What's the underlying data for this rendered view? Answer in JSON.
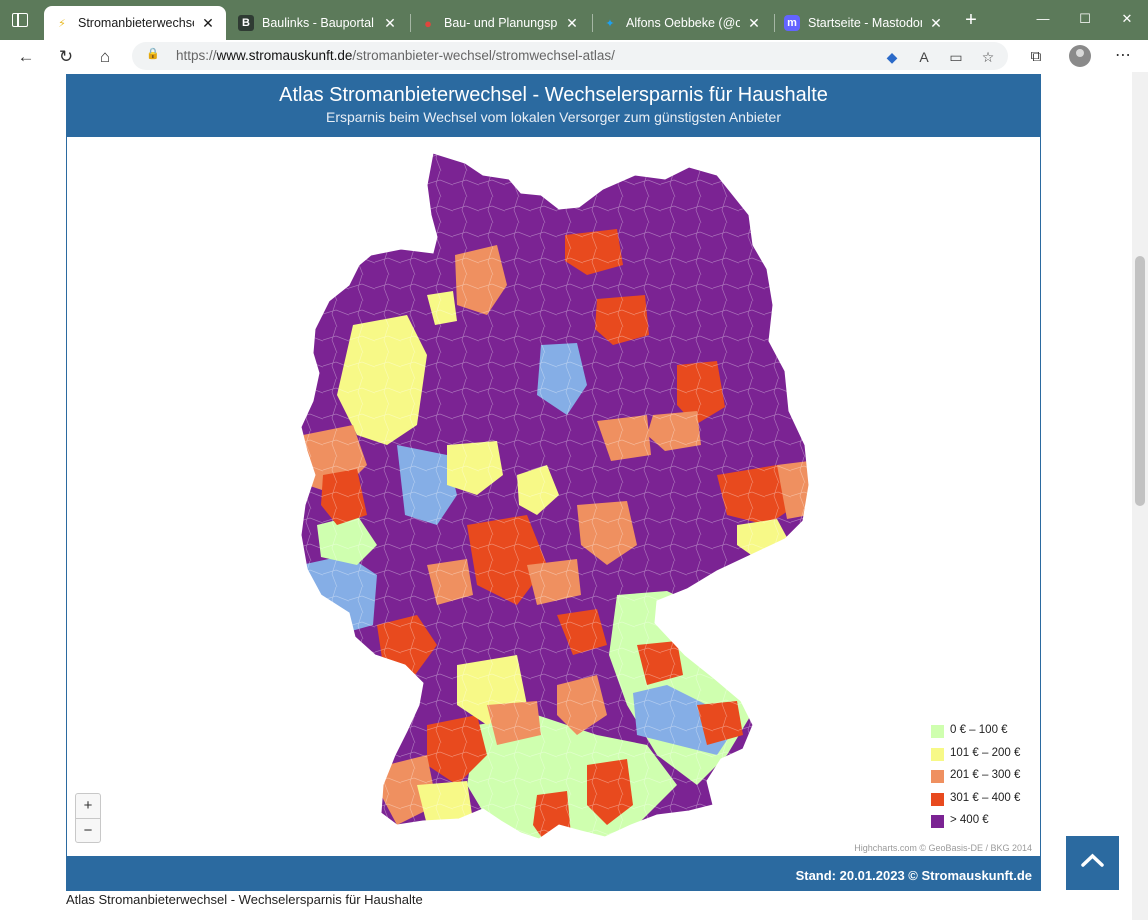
{
  "browser": {
    "tabs": [
      {
        "label": "Stromanbieterwechsel-Atl",
        "active": true,
        "icon": "stromauskunft-favicon",
        "favicon_glyph": "⚡",
        "favicon_color": "#e8b923"
      },
      {
        "label": "Baulinks - Bauportal / Bau",
        "active": false,
        "icon": "baulinks-favicon",
        "favicon_glyph": "B",
        "favicon_color": "#2f3b33"
      },
      {
        "label": "Bau- und Planungsprojekt",
        "active": false,
        "icon": "maps-pin-favicon",
        "favicon_glyph": "●",
        "favicon_color": "#e0463d"
      },
      {
        "label": "Alfons Oebbeke (@oebbe",
        "active": false,
        "icon": "twitter-favicon",
        "favicon_glyph": "✦",
        "favicon_color": "#1da1f2"
      },
      {
        "label": "Startseite - Mastodon",
        "active": false,
        "icon": "mastodon-favicon",
        "favicon_glyph": "m",
        "favicon_color": "#6364ff"
      }
    ],
    "close_glyph": "✕",
    "newtab_glyph": "+",
    "window": {
      "minimize": "—",
      "maximize": "☐",
      "close": "✕"
    },
    "nav": {
      "back": "←",
      "reload": "↻",
      "home": "⌂"
    },
    "address": {
      "lock_glyph": "🔒",
      "url_prefix": "https://",
      "url_host": "www.stromauskunft.de",
      "url_path": "/stromanbieter-wechsel/stromwechsel-atlas/"
    },
    "address_icons": {
      "tag": "◆",
      "read_aloud": "A",
      "reader": "▭",
      "favorite": "☆"
    },
    "extensions_glyph": "⧉",
    "menu_glyph": "⋯"
  },
  "map": {
    "title": "Atlas Stromanbieterwechsel - Wechselersparnis für Haushalte",
    "subtitle": "Ersparnis beim Wechsel vom lokalen Versorger zum günstigsten Anbieter",
    "legend": [
      {
        "label": "0 € – 100 €",
        "color": "#cfffaf"
      },
      {
        "label": "101 € – 200 €",
        "color": "#f7f987"
      },
      {
        "label": "201 € – 300 €",
        "color": "#ef9060"
      },
      {
        "label": "301 € – 400 €",
        "color": "#e84a1e"
      },
      {
        "label": "> 400 €",
        "color": "#7b2393"
      }
    ],
    "region_colors": {
      "above_400": "#7b2393",
      "r301_400": "#e84a1e",
      "r201_300": "#ef9060",
      "r101_200": "#f7f987",
      "r0_100": "#cfffaf",
      "no_data": "#85aee6"
    },
    "credits": "Highcharts.com © GeoBasis-DE / BKG 2014",
    "stand": "Stand: 20.01.2023 © Stromauskunft.de",
    "zoom_in": "+",
    "zoom_out": "−"
  },
  "caption": "Atlas Stromanbieterwechsel - Wechselersparnis für Haushalte"
}
